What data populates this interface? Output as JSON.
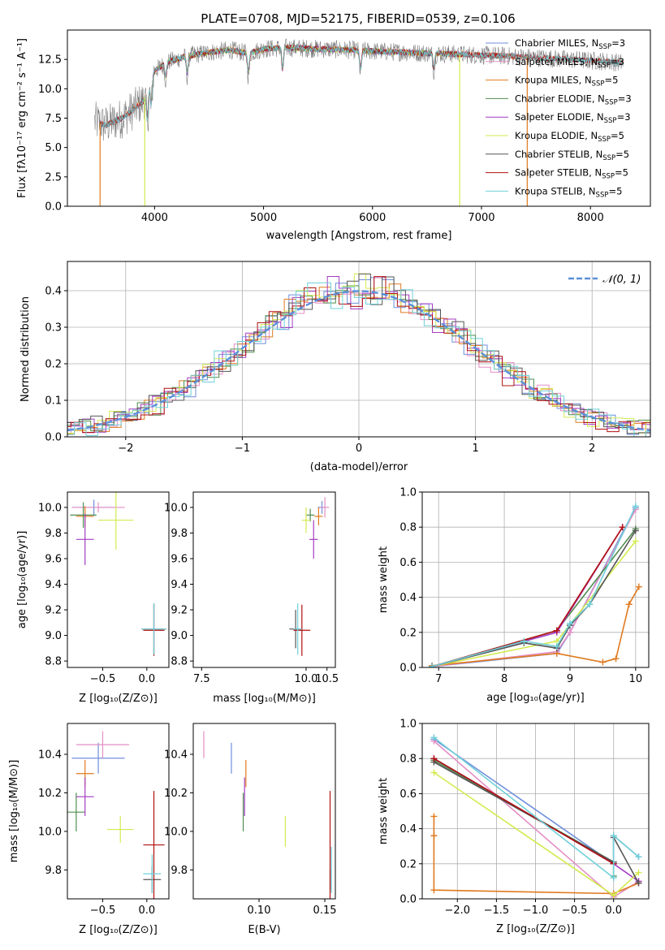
{
  "figure": {
    "title": "PLATE=0708, MJD=52175, FIBERID=0539, z=0.106"
  },
  "series_styles": [
    {
      "name": "Chabrier MILES",
      "nssp": "3",
      "color": "#6f8fdc"
    },
    {
      "name": "Salpeter MILES",
      "nssp": "3",
      "color": "#e48ec5"
    },
    {
      "name": "Kroupa MILES",
      "nssp": "5",
      "color": "#e07a1f"
    },
    {
      "name": "Chabrier ELODIE",
      "nssp": "3",
      "color": "#4f8d4f"
    },
    {
      "name": "Salpeter ELODIE",
      "nssp": "3",
      "color": "#a43cc2"
    },
    {
      "name": "Kroupa ELODIE",
      "nssp": "5",
      "color": "#d4ea50"
    },
    {
      "name": "Chabrier STELIB",
      "nssp": "5",
      "color": "#555555"
    },
    {
      "name": "Salpeter STELIB",
      "nssp": "5",
      "color": "#b01010"
    },
    {
      "name": "Kroupa STELIB",
      "nssp": "5",
      "color": "#6fd0d8"
    }
  ],
  "chart_data": [
    {
      "id": "spectrum",
      "type": "line",
      "xlabel": "wavelength [Angstrom, rest frame]",
      "ylabel": "Flux [fλ10⁻¹⁷ erg cm⁻² s⁻¹ A⁻¹]",
      "xlim": [
        3200,
        8550
      ],
      "ylim": [
        0,
        15
      ],
      "xticks": [
        "4000",
        "5000",
        "6000",
        "7000",
        "8000"
      ],
      "yticks": [
        "0.0",
        "2.5",
        "5.0",
        "7.5",
        "10.0",
        "12.5"
      ],
      "observed_color": "#7f7f7f",
      "legend": "right",
      "profile_x": [
        3450,
        3550,
        3700,
        3800,
        3900,
        4000,
        4100,
        4300,
        4500,
        4700,
        4860,
        5000,
        5200,
        5500,
        5800,
        6000,
        6300,
        6600,
        6900,
        7200,
        7400,
        7600,
        7800,
        8000,
        8200,
        8300
      ],
      "profile_y": [
        7.2,
        6.9,
        7.5,
        8.2,
        9.0,
        11.5,
        12.2,
        12.8,
        13.1,
        13.3,
        13.0,
        13.4,
        13.5,
        13.4,
        13.3,
        13.2,
        13.1,
        13.0,
        12.9,
        12.8,
        12.7,
        12.6,
        12.5,
        12.4,
        12.3,
        12.2
      ],
      "dips": [
        {
          "x": 3934,
          "depth": 3.0
        },
        {
          "x": 3969,
          "depth": 2.5
        },
        {
          "x": 4102,
          "depth": 1.5
        },
        {
          "x": 4300,
          "depth": 1.8
        },
        {
          "x": 4861,
          "depth": 2.0
        },
        {
          "x": 5175,
          "depth": 2.2
        },
        {
          "x": 5890,
          "depth": 2.0
        },
        {
          "x": 6563,
          "depth": 1.5
        }
      ],
      "spikes_to_zero": [
        {
          "x": 3500,
          "color": "#e07a1f"
        },
        {
          "x": 3910,
          "color": "#d4ea50"
        },
        {
          "x": 6800,
          "color": "#d4ea50"
        },
        {
          "x": 7420,
          "color": "#e07a1f"
        }
      ],
      "model_ranges": [
        [
          3500,
          7420
        ],
        [
          3500,
          7420
        ],
        [
          3500,
          7420
        ],
        [
          3910,
          6800
        ],
        [
          3910,
          6800
        ],
        [
          3910,
          6800
        ],
        [
          3500,
          8300
        ],
        [
          3500,
          8300
        ],
        [
          3500,
          8300
        ]
      ]
    },
    {
      "id": "residuals",
      "type": "area",
      "xlabel": "(data-model)/error",
      "ylabel": "Normed distribution",
      "xlim": [
        -2.5,
        2.5
      ],
      "ylim": [
        0,
        0.48
      ],
      "xticks": [
        "−2",
        "−1",
        "0",
        "1",
        "2"
      ],
      "yticks": [
        "0.0",
        "0.1",
        "0.2",
        "0.3",
        "0.4"
      ],
      "grid": true,
      "legend": "top-right",
      "normal_label": "𝒩(0, 1)",
      "normal_color": "#5b8fd9",
      "bin_width": 0.1
    },
    {
      "id": "age-vs-z",
      "type": "scatter",
      "xlabel": "Z [log₁₀(Z/Z⊙)]",
      "ylabel": "age  [log₁₀(age/yr)]",
      "xlim": [
        -0.9,
        0.25
      ],
      "ylim": [
        8.75,
        10.12
      ],
      "xticks": [
        "−0.5",
        "0.0"
      ],
      "yticks": [
        "8.8",
        "9.0",
        "9.2",
        "9.4",
        "9.6",
        "9.8",
        "10.0"
      ],
      "points": [
        {
          "x": -0.6,
          "y": 10.0,
          "dx": 0.25,
          "dy": 0.06
        },
        {
          "x": -0.55,
          "y": 10.0,
          "dx": 0.3,
          "dy": 0.04
        },
        {
          "x": -0.7,
          "y": 9.93,
          "dx": 0.1,
          "dy": 0.08
        },
        {
          "x": -0.72,
          "y": 9.94,
          "dx": 0.15,
          "dy": 0.1
        },
        {
          "x": -0.7,
          "y": 9.75,
          "dx": 0.1,
          "dy": 0.2
        },
        {
          "x": -0.35,
          "y": 9.9,
          "dx": 0.2,
          "dy": 0.23
        },
        {
          "x": 0.08,
          "y": 9.05,
          "dx": 0.14,
          "dy": 0.2
        },
        {
          "x": 0.08,
          "y": 9.04,
          "dx": 0.12,
          "dy": 0.2
        },
        {
          "x": 0.08,
          "y": 9.05,
          "dx": 0.14,
          "dy": 0.2
        }
      ]
    },
    {
      "id": "age-vs-mass",
      "type": "scatter",
      "xlabel": "mass [log₁₀(M/M⊙)]",
      "ylabel": "",
      "xlim": [
        7.3,
        10.7
      ],
      "ylim": [
        8.75,
        10.12
      ],
      "xticks": [
        "7.5",
        "10.0",
        "10.5"
      ],
      "yticks": [
        "8.8",
        "9.0",
        "9.2",
        "9.4",
        "9.6",
        "9.8",
        "10.0"
      ],
      "points": [
        {
          "x": 10.38,
          "y": 10.0,
          "dx": 0.1,
          "dy": 0.05
        },
        {
          "x": 10.45,
          "y": 10.0,
          "dx": 0.1,
          "dy": 0.08
        },
        {
          "x": 10.3,
          "y": 9.93,
          "dx": 0.1,
          "dy": 0.07
        },
        {
          "x": 10.1,
          "y": 9.94,
          "dx": 0.1,
          "dy": 0.05
        },
        {
          "x": 10.18,
          "y": 9.75,
          "dx": 0.1,
          "dy": 0.15
        },
        {
          "x": 10.0,
          "y": 9.9,
          "dx": 0.1,
          "dy": 0.1
        },
        {
          "x": 9.75,
          "y": 9.05,
          "dx": 0.15,
          "dy": 0.15
        },
        {
          "x": 9.9,
          "y": 9.04,
          "dx": 0.2,
          "dy": 0.2
        },
        {
          "x": 9.8,
          "y": 9.05,
          "dx": 0.1,
          "dy": 0.2
        }
      ]
    },
    {
      "id": "mass-weight-vs-age",
      "type": "line",
      "xlabel": "age  [log₁₀(age/yr)]",
      "ylabel": "mass weight",
      "xlim": [
        6.75,
        10.2
      ],
      "ylim": [
        0,
        1.0
      ],
      "xticks": [
        "7",
        "8",
        "9",
        "10"
      ],
      "yticks": [
        "0.0",
        "0.2",
        "0.4",
        "0.6",
        "0.8",
        "1.0"
      ],
      "grid": true,
      "series": [
        {
          "x": [
            6.9,
            8.8,
            9.0,
            10.0
          ],
          "y": [
            0.005,
            0.08,
            0.2,
            0.91
          ]
        },
        {
          "x": [
            6.9,
            8.8,
            9.0,
            10.0
          ],
          "y": [
            0.005,
            0.09,
            0.2,
            0.9
          ]
        },
        {
          "x": [
            6.9,
            8.8,
            9.5,
            9.7,
            9.9,
            10.05
          ],
          "y": [
            0.01,
            0.08,
            0.03,
            0.05,
            0.36,
            0.46
          ]
        },
        {
          "x": [
            6.9,
            8.8,
            10.0
          ],
          "y": [
            0.005,
            0.21,
            0.79
          ]
        },
        {
          "x": [
            6.9,
            8.8,
            9.8
          ],
          "y": [
            0.005,
            0.2,
            0.8
          ]
        },
        {
          "x": [
            6.9,
            8.8,
            10.0
          ],
          "y": [
            0.005,
            0.15,
            0.72
          ]
        },
        {
          "x": [
            6.9,
            8.3,
            8.8,
            9.0,
            9.3,
            10.0
          ],
          "y": [
            0.005,
            0.14,
            0.11,
            0.24,
            0.36,
            0.78
          ]
        },
        {
          "x": [
            6.9,
            8.8,
            9.8
          ],
          "y": [
            0.005,
            0.21,
            0.8
          ]
        },
        {
          "x": [
            6.9,
            8.3,
            8.8,
            9.0,
            9.3,
            10.0
          ],
          "y": [
            0.005,
            0.15,
            0.12,
            0.25,
            0.36,
            0.92
          ]
        }
      ]
    },
    {
      "id": "mass-vs-z",
      "type": "scatter",
      "xlabel": "Z [log₁₀(Z/Z⊙)]",
      "ylabel": "mass [log₁₀(M/M⊙)]",
      "xlim": [
        -0.9,
        0.25
      ],
      "ylim": [
        9.65,
        10.56
      ],
      "xticks": [
        "−0.5",
        "0.0"
      ],
      "yticks": [
        "9.8",
        "10.0",
        "10.2",
        "10.4"
      ],
      "points": [
        {
          "x": -0.55,
          "y": 10.38,
          "dx": 0.3,
          "dy": 0.08
        },
        {
          "x": -0.5,
          "y": 10.45,
          "dx": 0.3,
          "dy": 0.07
        },
        {
          "x": -0.7,
          "y": 10.3,
          "dx": 0.1,
          "dy": 0.07
        },
        {
          "x": -0.8,
          "y": 10.1,
          "dx": 0.1,
          "dy": 0.1
        },
        {
          "x": -0.7,
          "y": 10.18,
          "dx": 0.1,
          "dy": 0.1
        },
        {
          "x": -0.3,
          "y": 10.01,
          "dx": 0.15,
          "dy": 0.07
        },
        {
          "x": 0.06,
          "y": 9.75,
          "dx": 0.1,
          "dy": 0.07
        },
        {
          "x": 0.08,
          "y": 9.93,
          "dx": 0.12,
          "dy": 0.28
        },
        {
          "x": 0.06,
          "y": 9.78,
          "dx": 0.1,
          "dy": 0.1
        }
      ]
    },
    {
      "id": "mass-vs-ebv",
      "type": "scatter",
      "xlabel": "E(B-V)",
      "ylabel": "",
      "xlim": [
        0.05,
        0.158
      ],
      "ylim": [
        9.65,
        10.56
      ],
      "xticks": [
        "0.10",
        "0.15"
      ],
      "yticks": [
        "9.8",
        "10.0",
        "10.2",
        "10.4"
      ],
      "points": [
        {
          "x": 0.079,
          "y": 10.38,
          "dx": 0,
          "dy": 0.08
        },
        {
          "x": 0.058,
          "y": 10.45,
          "dx": 0,
          "dy": 0.07
        },
        {
          "x": 0.09,
          "y": 10.3,
          "dx": 0,
          "dy": 0.07
        },
        {
          "x": 0.088,
          "y": 10.1,
          "dx": 0,
          "dy": 0.1
        },
        {
          "x": 0.089,
          "y": 10.18,
          "dx": 0,
          "dy": 0.1
        },
        {
          "x": 0.12,
          "y": 10.0,
          "dx": 0,
          "dy": 0.08
        },
        {
          "x": 0.154,
          "y": 9.75,
          "dx": 0,
          "dy": 0.05
        },
        {
          "x": 0.154,
          "y": 9.93,
          "dx": 0,
          "dy": 0.28
        },
        {
          "x": 0.155,
          "y": 9.8,
          "dx": 0,
          "dy": 0.12
        }
      ]
    },
    {
      "id": "mass-weight-vs-z",
      "type": "line",
      "xlabel": "Z [log₁₀(Z/Z⊙)]",
      "ylabel": "mass weight",
      "xlim": [
        -2.45,
        0.45
      ],
      "ylim": [
        0,
        1.0
      ],
      "xticks": [
        "−2.0",
        "−1.5",
        "−1.0",
        "−0.5",
        "0.0"
      ],
      "yticks": [
        "0.0",
        "0.2",
        "0.4",
        "0.6",
        "0.8",
        "1.0"
      ],
      "grid": true,
      "series": [
        {
          "x": [
            -2.3,
            0.0,
            0.0,
            0.32
          ],
          "y": [
            0.91,
            0.2,
            0.36,
            0.24
          ]
        },
        {
          "x": [
            -2.3,
            0.0,
            0.32
          ],
          "y": [
            0.9,
            0.01,
            0.1
          ]
        },
        {
          "x": [
            -2.3,
            -2.3,
            -2.3,
            0.0,
            0.32
          ],
          "y": [
            0.47,
            0.36,
            0.05,
            0.03,
            0.09
          ]
        },
        {
          "x": [
            -2.3,
            0.0,
            0.0
          ],
          "y": [
            0.79,
            0.21,
            0.13
          ]
        },
        {
          "x": [
            -2.3,
            0.0,
            0.32
          ],
          "y": [
            0.8,
            0.2,
            0.1
          ]
        },
        {
          "x": [
            -2.3,
            0.0,
            0.32
          ],
          "y": [
            0.72,
            0.02,
            0.15
          ]
        },
        {
          "x": [
            -2.3,
            0.0,
            0.0,
            0.32
          ],
          "y": [
            0.78,
            0.21,
            0.35,
            0.09
          ]
        },
        {
          "x": [
            -2.3,
            0.0
          ],
          "y": [
            0.8,
            0.2
          ]
        },
        {
          "x": [
            -2.3,
            0.0,
            0.0,
            0.32
          ],
          "y": [
            0.92,
            0.12,
            0.36,
            0.24
          ]
        }
      ]
    }
  ]
}
